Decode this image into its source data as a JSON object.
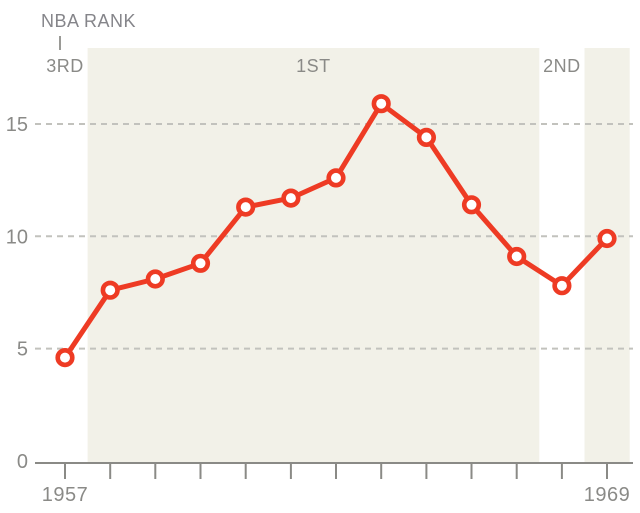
{
  "title": "NBA RANK",
  "chart_data": {
    "type": "line",
    "title": "NBA RANK",
    "x": [
      1957,
      1958,
      1959,
      1960,
      1961,
      1962,
      1963,
      1964,
      1965,
      1966,
      1967,
      1968,
      1969
    ],
    "values": [
      4.6,
      7.6,
      8.1,
      8.8,
      11.3,
      11.7,
      12.6,
      15.9,
      14.4,
      11.4,
      9.1,
      7.8,
      9.9
    ],
    "xlabel": "",
    "ylabel": "",
    "ylim": [
      0,
      18.5
    ],
    "y_ticks": [
      0,
      5,
      10,
      15
    ],
    "x_ticks": [
      1957,
      1958,
      1959,
      1960,
      1961,
      1962,
      1963,
      1964,
      1965,
      1966,
      1967,
      1968,
      1969
    ],
    "x_ticks_labeled": [
      1957,
      1969
    ],
    "grid": "horizontal dashed gridlines at 5, 10, 15",
    "legend_position": "none",
    "marker": "open-circle",
    "rank_regions": [
      {
        "label": "3RD",
        "start_year": 1957,
        "end_year": 1957,
        "shaded": false
      },
      {
        "label": "1ST",
        "start_year": 1958,
        "end_year": 1967,
        "shaded": true
      },
      {
        "label": "2ND",
        "start_year": 1968,
        "end_year": 1968,
        "shaded": false
      },
      {
        "label": "",
        "start_year": 1969,
        "end_year": 1969,
        "shaded": true
      }
    ],
    "colors": {
      "line": "#ee3b24",
      "point_fill": "#ffffff",
      "band": "#f2f1e8",
      "grid": "#c2c2bd",
      "axis": "#8a8a86",
      "text": "#8a8a87"
    }
  }
}
